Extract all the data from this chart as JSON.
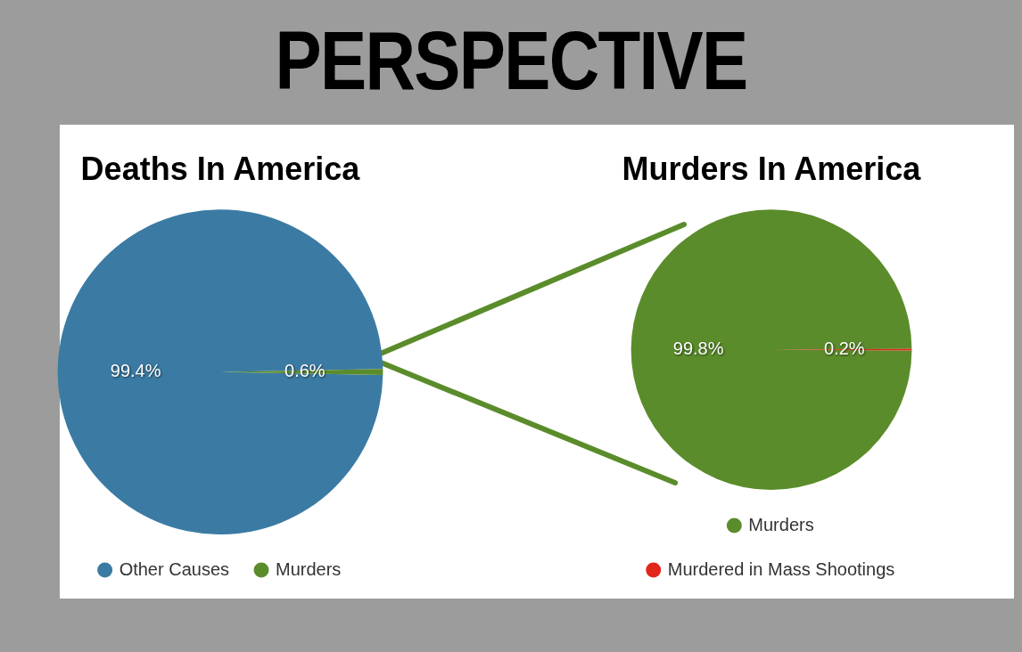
{
  "chart_data": [
    {
      "type": "pie",
      "title": "Deaths In America",
      "annotations": [
        "PERSPECTIVE"
      ],
      "categories": [
        "Other Causes",
        "Murders"
      ],
      "values": [
        99.4,
        0.6
      ],
      "colors": [
        "#3b7ba3",
        "#5b8c2b"
      ],
      "value_labels": [
        "99.4%",
        "0.6%"
      ],
      "legend": "bottom"
    },
    {
      "type": "pie",
      "title": "Murders In America",
      "categories": [
        "Murders",
        "Murdered in Mass Shootings"
      ],
      "values": [
        99.8,
        0.2
      ],
      "colors": [
        "#5b8c2b",
        "#e3261b"
      ],
      "value_labels": [
        "99.8%",
        "0.2%"
      ],
      "legend": "bottom"
    }
  ]
}
